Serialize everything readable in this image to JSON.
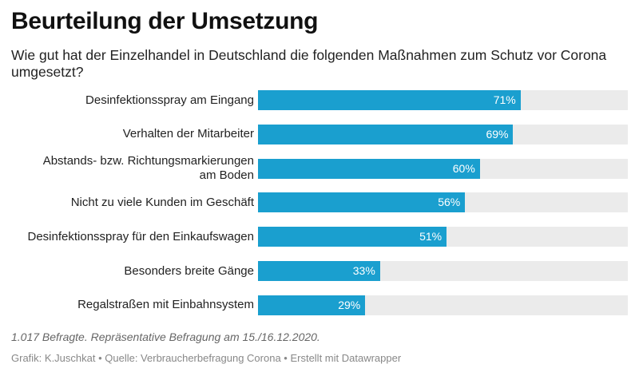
{
  "header": {
    "title": "Beurteilung der Umsetzung",
    "subtitle": "Wie gut hat der Einzelhandel in Deutschland die folgenden Maßnahmen zum Schutz vor Corona umgesetzt?"
  },
  "chart_data": {
    "type": "bar",
    "orientation": "horizontal",
    "title": "Beurteilung der Umsetzung",
    "xlim": [
      0,
      100
    ],
    "unit": "%",
    "categories": [
      [
        "Desinfektionsspray am Eingang"
      ],
      [
        "Verhalten der Mitarbeiter"
      ],
      [
        "Abstands- bzw. Richtungsmarkierungen",
        "am Boden"
      ],
      [
        "Nicht zu viele Kunden im Geschäft"
      ],
      [
        "Desinfektionsspray für den Einkaufswagen"
      ],
      [
        "Besonders breite Gänge"
      ],
      [
        "Regalstraßen mit Einbahnsystem"
      ]
    ],
    "values": [
      71,
      69,
      60,
      56,
      51,
      33,
      29
    ],
    "value_labels": [
      "71%",
      "69%",
      "60%",
      "56%",
      "51%",
      "33%",
      "29%"
    ],
    "colors": {
      "bar": "#1a9fcf",
      "track": "#ebebeb",
      "value_text": "#ffffff"
    }
  },
  "footer": {
    "note": "1.017 Befragte. Repräsentative Befragung am 15./16.12.2020.",
    "credit": "Grafik: K.Juschkat • Quelle: Verbraucherbefragung Corona • Erstellt mit Datawrapper"
  }
}
